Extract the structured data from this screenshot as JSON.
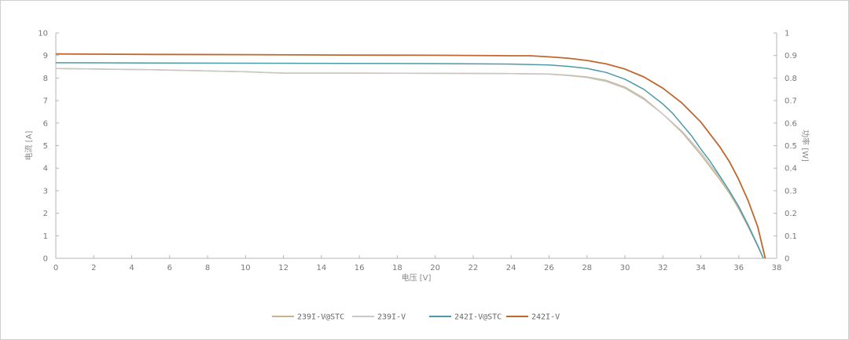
{
  "chart_data": {
    "type": "line",
    "title": "",
    "xlabel": "电压 [V]",
    "ylabel_left": "电流 [A]",
    "ylabel_right": "功率 [W]",
    "xlim": [
      0,
      38
    ],
    "ylim_left": [
      0,
      10
    ],
    "ylim_right": [
      0,
      1
    ],
    "x_ticks": [
      "0",
      "2",
      "4",
      "6",
      "8",
      "10",
      "12",
      "14",
      "16",
      "18",
      "20",
      "22",
      "24",
      "26",
      "28",
      "30",
      "32",
      "34",
      "36",
      "38"
    ],
    "y_ticks_left": [
      "0",
      "1",
      "2",
      "3",
      "4",
      "5",
      "6",
      "7",
      "8",
      "9",
      "10"
    ],
    "y_ticks_right": [
      "0",
      "0.1",
      "0.2",
      "0.3",
      "0.4",
      "0.5",
      "0.6",
      "0.7",
      "0.8",
      "0.9",
      "1"
    ],
    "grid": false,
    "legend_position": "bottom",
    "series": [
      {
        "name": "239I-V@STC",
        "color": "#c9b48f",
        "points": [
          [
            0,
            8.42
          ],
          [
            5,
            8.37
          ],
          [
            10,
            8.28
          ],
          [
            12,
            8.22
          ],
          [
            16,
            8.22
          ],
          [
            20,
            8.21
          ],
          [
            24,
            8.2
          ],
          [
            26,
            8.18
          ],
          [
            27,
            8.13
          ],
          [
            28,
            8.05
          ],
          [
            29,
            7.9
          ],
          [
            30,
            7.6
          ],
          [
            31,
            7.1
          ],
          [
            32,
            6.4
          ],
          [
            33,
            5.6
          ],
          [
            34,
            4.6
          ],
          [
            35,
            3.5
          ],
          [
            35.5,
            2.9
          ],
          [
            36,
            2.2
          ],
          [
            36.5,
            1.4
          ],
          [
            37,
            0.55
          ],
          [
            37.3,
            0
          ]
        ]
      },
      {
        "name": "239I-V",
        "color": "#c8c8c8",
        "points": [
          [
            0,
            8.42
          ],
          [
            5,
            8.37
          ],
          [
            10,
            8.28
          ],
          [
            12,
            8.22
          ],
          [
            16,
            8.22
          ],
          [
            20,
            8.21
          ],
          [
            24,
            8.2
          ],
          [
            26,
            8.17
          ],
          [
            27,
            8.11
          ],
          [
            28,
            8.02
          ],
          [
            29,
            7.85
          ],
          [
            30,
            7.55
          ],
          [
            31,
            7.05
          ],
          [
            32,
            6.4
          ],
          [
            33,
            5.65
          ],
          [
            34,
            4.7
          ],
          [
            35,
            3.6
          ],
          [
            35.5,
            3.0
          ],
          [
            36,
            2.3
          ],
          [
            36.5,
            1.5
          ],
          [
            37,
            0.6
          ],
          [
            37.3,
            0
          ]
        ]
      },
      {
        "name": "242I-V@STC",
        "color": "#4d9aa6",
        "points": [
          [
            0,
            8.68
          ],
          [
            5,
            8.67
          ],
          [
            10,
            8.66
          ],
          [
            15,
            8.65
          ],
          [
            20,
            8.64
          ],
          [
            24,
            8.62
          ],
          [
            26,
            8.58
          ],
          [
            27,
            8.52
          ],
          [
            28,
            8.43
          ],
          [
            29,
            8.25
          ],
          [
            30,
            7.95
          ],
          [
            31,
            7.5
          ],
          [
            32,
            6.85
          ],
          [
            32.5,
            6.45
          ],
          [
            33,
            5.95
          ],
          [
            33.5,
            5.45
          ],
          [
            34,
            4.85
          ],
          [
            34.5,
            4.3
          ],
          [
            35,
            3.65
          ],
          [
            35.5,
            3.0
          ],
          [
            36,
            2.3
          ],
          [
            36.5,
            1.45
          ],
          [
            37,
            0.55
          ],
          [
            37.3,
            0
          ]
        ]
      },
      {
        "name": "242I-V",
        "color": "#c0672e",
        "points": [
          [
            0,
            9.07
          ],
          [
            5,
            9.05
          ],
          [
            10,
            9.04
          ],
          [
            15,
            9.02
          ],
          [
            20,
            9.01
          ],
          [
            24,
            8.99
          ],
          [
            25,
            8.99
          ],
          [
            26,
            8.94
          ],
          [
            27,
            8.88
          ],
          [
            28,
            8.78
          ],
          [
            29,
            8.63
          ],
          [
            30,
            8.4
          ],
          [
            31,
            8.05
          ],
          [
            32,
            7.55
          ],
          [
            33,
            6.9
          ],
          [
            34,
            6.05
          ],
          [
            35,
            4.95
          ],
          [
            35.5,
            4.3
          ],
          [
            36,
            3.5
          ],
          [
            36.5,
            2.55
          ],
          [
            37,
            1.4
          ],
          [
            37.4,
            0
          ]
        ]
      }
    ]
  }
}
